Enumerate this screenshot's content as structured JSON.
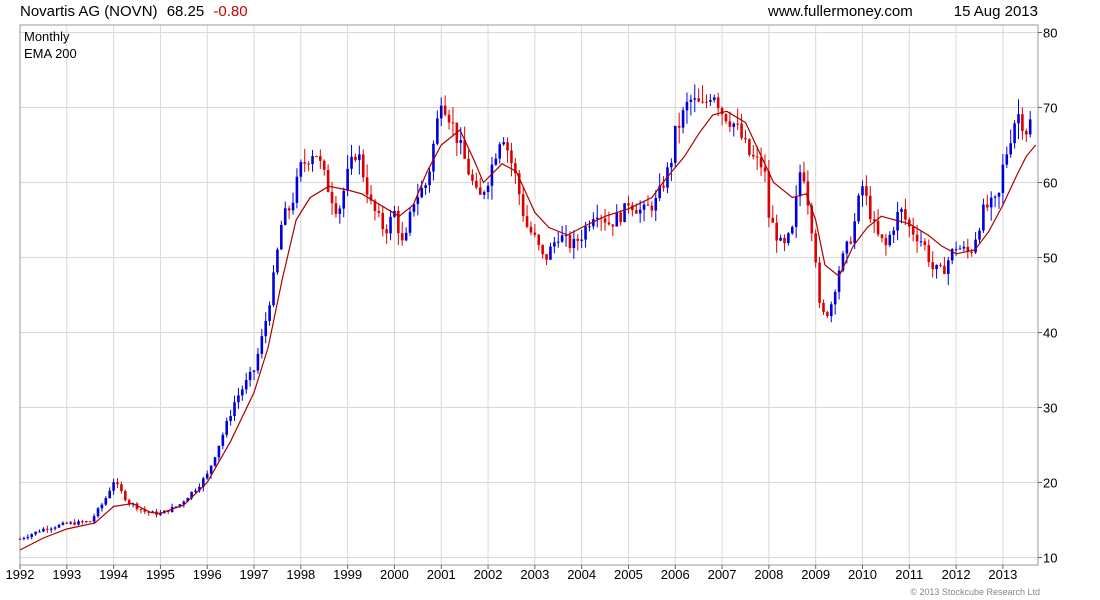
{
  "header": {
    "title": "Novartis AG (NOVN)",
    "price": "68.25",
    "change": "-0.80",
    "site": "www.fullermoney.com",
    "date": "15 Aug 2013"
  },
  "copyright": "© 2013 Stockcube Research Ltd",
  "colors": {
    "up": "#0000dd",
    "down": "#dd0000",
    "ema": "#aa0000",
    "grid": "#d8d8d8"
  },
  "chart_data": {
    "type": "line",
    "subtype": "monthly candlestick with EMA overlay",
    "legend": {
      "position": "top-left",
      "entries": [
        "Monthly",
        "EMA 200"
      ]
    },
    "yaxis": {
      "position": "right",
      "ylim": [
        9,
        81
      ],
      "ticks": [
        10,
        20,
        30,
        40,
        50,
        60,
        70,
        80
      ]
    },
    "xaxis": {
      "xlim": [
        1992.0,
        2013.75
      ],
      "ticks": [
        "1992",
        "1993",
        "1994",
        "1995",
        "1996",
        "1997",
        "1998",
        "1999",
        "2000",
        "2001",
        "2002",
        "2003",
        "2004",
        "2005",
        "2006",
        "2007",
        "2008",
        "2009",
        "2010",
        "2011",
        "2012",
        "2013"
      ]
    },
    "grid": true,
    "series": [
      {
        "name": "Monthly",
        "points": [
          [
            1992.0,
            12.5
          ],
          [
            1992.5,
            13.8
          ],
          [
            1993.0,
            14.5
          ],
          [
            1993.5,
            14.8
          ],
          [
            1993.8,
            17.5
          ],
          [
            1994.0,
            20.2
          ],
          [
            1994.3,
            17.5
          ],
          [
            1994.7,
            16.0
          ],
          [
            1995.0,
            15.8
          ],
          [
            1995.4,
            17.0
          ],
          [
            1995.8,
            19.5
          ],
          [
            1996.0,
            21.0
          ],
          [
            1996.4,
            27.5
          ],
          [
            1996.6,
            31.0
          ],
          [
            1997.0,
            35.0
          ],
          [
            1997.2,
            40.0
          ],
          [
            1997.4,
            46.5
          ],
          [
            1997.6,
            55.0
          ],
          [
            1997.8,
            57.0
          ],
          [
            1998.0,
            62.0
          ],
          [
            1998.3,
            64.5
          ],
          [
            1998.6,
            59.0
          ],
          [
            1998.8,
            56.0
          ],
          [
            1999.0,
            61.0
          ],
          [
            1999.2,
            64.5
          ],
          [
            1999.5,
            57.0
          ],
          [
            1999.8,
            53.5
          ],
          [
            2000.0,
            56.0
          ],
          [
            2000.2,
            51.0
          ],
          [
            2000.4,
            57.5
          ],
          [
            2000.7,
            60.0
          ],
          [
            2000.9,
            67.5
          ],
          [
            2001.0,
            71.5
          ],
          [
            2001.2,
            68.5
          ],
          [
            2001.5,
            63.0
          ],
          [
            2001.8,
            57.5
          ],
          [
            2002.0,
            60.5
          ],
          [
            2002.3,
            67.0
          ],
          [
            2002.6,
            60.5
          ],
          [
            2002.8,
            54.5
          ],
          [
            2003.0,
            52.5
          ],
          [
            2003.2,
            49.5
          ],
          [
            2003.5,
            53.0
          ],
          [
            2003.8,
            51.5
          ],
          [
            2004.0,
            53.0
          ],
          [
            2004.3,
            56.5
          ],
          [
            2004.6,
            54.5
          ],
          [
            2004.9,
            56.0
          ],
          [
            2005.0,
            57.5
          ],
          [
            2005.3,
            56.0
          ],
          [
            2005.6,
            57.5
          ],
          [
            2005.9,
            62.5
          ],
          [
            2006.0,
            66.5
          ],
          [
            2006.3,
            71.0
          ],
          [
            2006.6,
            70.0
          ],
          [
            2006.8,
            72.5
          ],
          [
            2007.0,
            69.5
          ],
          [
            2007.3,
            67.5
          ],
          [
            2007.6,
            63.5
          ],
          [
            2007.9,
            62.0
          ],
          [
            2008.0,
            55.5
          ],
          [
            2008.3,
            51.0
          ],
          [
            2008.5,
            53.5
          ],
          [
            2008.7,
            63.0
          ],
          [
            2008.9,
            55.0
          ],
          [
            2009.0,
            50.0
          ],
          [
            2009.1,
            42.0
          ],
          [
            2009.3,
            43.0
          ],
          [
            2009.5,
            48.5
          ],
          [
            2009.8,
            53.5
          ],
          [
            2009.9,
            57.0
          ],
          [
            2010.0,
            59.5
          ],
          [
            2010.3,
            53.0
          ],
          [
            2010.5,
            51.5
          ],
          [
            2010.8,
            56.5
          ],
          [
            2011.0,
            54.0
          ],
          [
            2011.3,
            52.0
          ],
          [
            2011.5,
            48.5
          ],
          [
            2011.7,
            48.0
          ],
          [
            2011.9,
            50.5
          ],
          [
            2012.0,
            51.5
          ],
          [
            2012.3,
            50.5
          ],
          [
            2012.6,
            56.5
          ],
          [
            2012.9,
            57.5
          ],
          [
            2013.0,
            62.0
          ],
          [
            2013.3,
            69.5
          ],
          [
            2013.5,
            67.0
          ],
          [
            2013.6,
            68.25
          ]
        ]
      },
      {
        "name": "EMA 200",
        "points": [
          [
            1992.0,
            11.0
          ],
          [
            1992.5,
            12.6
          ],
          [
            1993.0,
            13.8
          ],
          [
            1993.6,
            14.6
          ],
          [
            1994.0,
            16.8
          ],
          [
            1994.4,
            17.2
          ],
          [
            1994.8,
            16.0
          ],
          [
            1995.0,
            15.9
          ],
          [
            1995.5,
            17.0
          ],
          [
            1996.0,
            20.0
          ],
          [
            1996.5,
            25.5
          ],
          [
            1997.0,
            32.0
          ],
          [
            1997.3,
            38.0
          ],
          [
            1997.6,
            47.0
          ],
          [
            1997.9,
            55.0
          ],
          [
            1998.2,
            58.0
          ],
          [
            1998.6,
            59.5
          ],
          [
            1999.0,
            59.0
          ],
          [
            1999.3,
            58.5
          ],
          [
            1999.7,
            57.0
          ],
          [
            2000.1,
            55.5
          ],
          [
            2000.4,
            57.0
          ],
          [
            2000.7,
            61.5
          ],
          [
            2001.0,
            65.0
          ],
          [
            2001.4,
            67.0
          ],
          [
            2001.7,
            63.0
          ],
          [
            2001.9,
            60.0
          ],
          [
            2002.3,
            62.5
          ],
          [
            2002.6,
            61.5
          ],
          [
            2003.0,
            56.0
          ],
          [
            2003.3,
            54.0
          ],
          [
            2003.7,
            53.0
          ],
          [
            2004.0,
            54.0
          ],
          [
            2004.5,
            55.5
          ],
          [
            2005.0,
            56.5
          ],
          [
            2005.5,
            58.0
          ],
          [
            2005.8,
            60.5
          ],
          [
            2006.2,
            63.5
          ],
          [
            2006.5,
            66.5
          ],
          [
            2006.8,
            69.0
          ],
          [
            2007.1,
            69.5
          ],
          [
            2007.5,
            68.0
          ],
          [
            2007.8,
            64.0
          ],
          [
            2008.1,
            60.0
          ],
          [
            2008.5,
            58.0
          ],
          [
            2008.8,
            58.5
          ],
          [
            2009.0,
            55.0
          ],
          [
            2009.2,
            49.0
          ],
          [
            2009.5,
            47.5
          ],
          [
            2009.8,
            51.5
          ],
          [
            2010.1,
            54.0
          ],
          [
            2010.4,
            55.5
          ],
          [
            2010.7,
            55.0
          ],
          [
            2011.0,
            54.5
          ],
          [
            2011.4,
            53.0
          ],
          [
            2011.7,
            51.5
          ],
          [
            2012.0,
            50.5
          ],
          [
            2012.4,
            51.0
          ],
          [
            2012.7,
            53.5
          ],
          [
            2013.0,
            57.0
          ],
          [
            2013.3,
            61.0
          ],
          [
            2013.5,
            63.5
          ],
          [
            2013.7,
            65.0
          ]
        ]
      }
    ]
  }
}
